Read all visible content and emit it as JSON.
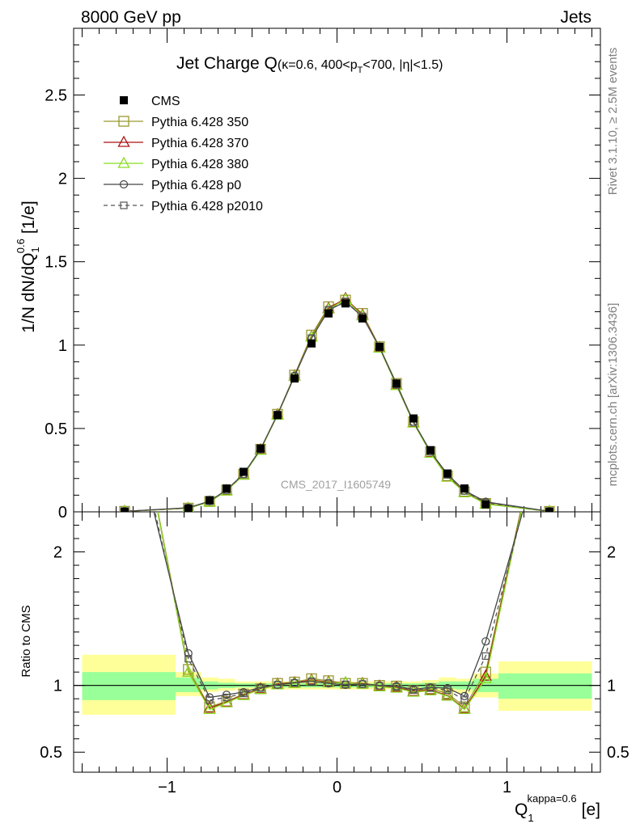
{
  "header": {
    "left": "8000 GeV pp",
    "right": "Jets"
  },
  "side_labels": {
    "rivet": "Rivet 3.1.10, ≥ 2.5M events",
    "mcplots": "mcplots.cern.ch [arXiv:1306.3436]"
  },
  "watermark": "CMS_2017_I1605749",
  "chart_data": [
    {
      "type": "scatter",
      "panel": "main",
      "title_main": "Jet Charge Q",
      "title_sub": "(κ=0.6, 400<p",
      "title_sub_sub": "T",
      "title_sub_tail": "<700, |η|<1.5)",
      "ylabel_main": "1/N dN/dQ",
      "ylabel_sup": "0.6",
      "ylabel_sub": "1",
      "ylabel_unit": "[1/e]",
      "xlim": [
        -1.55,
        1.55
      ],
      "ylim": [
        0,
        2.9
      ],
      "yticks": [
        0,
        0.5,
        1,
        1.5,
        2,
        2.5
      ],
      "ytick_labels": [
        "0",
        "0.5",
        "1",
        "1.5",
        "2",
        "2.5"
      ],
      "legend_position": "top-left",
      "x": [
        -1.25,
        -0.875,
        -0.75,
        -0.65,
        -0.55,
        -0.45,
        -0.35,
        -0.25,
        -0.15,
        -0.05,
        0.05,
        0.15,
        0.25,
        0.35,
        0.45,
        0.55,
        0.65,
        0.75,
        0.875,
        1.25
      ],
      "series": [
        {
          "name": "CMS",
          "key": "cms",
          "color": "#000000",
          "marker": "filled-square",
          "values": [
            0.002,
            0.02,
            0.07,
            0.14,
            0.24,
            0.38,
            0.58,
            0.8,
            1.01,
            1.19,
            1.25,
            1.16,
            0.99,
            0.77,
            0.56,
            0.37,
            0.23,
            0.14,
            0.045,
            0.002
          ]
        },
        {
          "name": "Pythia 6.428 350",
          "key": "p350",
          "color": "#999933",
          "marker": "open-square",
          "dash": "",
          "values": [
            0.003,
            0.022,
            0.062,
            0.13,
            0.225,
            0.375,
            0.585,
            0.82,
            1.06,
            1.23,
            1.27,
            1.19,
            0.99,
            0.77,
            0.54,
            0.36,
            0.215,
            0.12,
            0.05,
            0.0025
          ]
        },
        {
          "name": "Pythia 6.428 370",
          "key": "p370",
          "color": "#aa1111",
          "marker": "open-triangle",
          "dash": "",
          "values": [
            0.003,
            0.022,
            0.06,
            0.128,
            0.223,
            0.373,
            0.583,
            0.815,
            1.05,
            1.22,
            1.28,
            1.18,
            0.985,
            0.76,
            0.535,
            0.355,
            0.21,
            0.118,
            0.048,
            0.0025
          ]
        },
        {
          "name": "Pythia 6.428 380",
          "key": "p380",
          "color": "#88dd22",
          "marker": "open-triangle",
          "dash": "",
          "values": [
            0.003,
            0.022,
            0.059,
            0.126,
            0.221,
            0.37,
            0.58,
            0.812,
            1.048,
            1.215,
            1.275,
            1.175,
            0.982,
            0.758,
            0.533,
            0.352,
            0.208,
            0.116,
            0.047,
            0.0025
          ]
        },
        {
          "name": "Pythia 6.428 p0",
          "key": "p0",
          "color": "#444444",
          "marker": "open-circle",
          "dash": "",
          "values": [
            0.003,
            0.025,
            0.064,
            0.132,
            0.227,
            0.377,
            0.584,
            0.815,
            1.04,
            1.21,
            1.26,
            1.17,
            0.988,
            0.765,
            0.54,
            0.362,
            0.225,
            0.128,
            0.06,
            0.003
          ]
        },
        {
          "name": "Pythia 6.428 p2010",
          "key": "p2010",
          "color": "#555555",
          "marker": "open-square-small",
          "dash": "5,4",
          "values": [
            0.003,
            0.024,
            0.063,
            0.13,
            0.225,
            0.375,
            0.583,
            0.813,
            1.042,
            1.212,
            1.262,
            1.172,
            0.986,
            0.763,
            0.538,
            0.36,
            0.222,
            0.125,
            0.055,
            0.003
          ]
        }
      ]
    },
    {
      "type": "line",
      "panel": "ratio",
      "ylabel": "Ratio to CMS",
      "xlabel_main": "Q",
      "xlabel_sup": "kappa=0.6",
      "xlabel_sub": "1",
      "xlabel_unit": "[e]",
      "xlim": [
        -1.55,
        1.55
      ],
      "ylim": [
        0.35,
        2.3
      ],
      "xticks": [
        -1,
        0,
        1
      ],
      "xtick_labels": [
        "−1",
        "0",
        "1"
      ],
      "yticks": [
        0.5,
        1,
        2
      ],
      "ytick_labels": [
        "0.5",
        "1",
        "2"
      ],
      "band_bins": [
        {
          "x0": -1.5,
          "x1": -0.95,
          "inner": [
            0.89,
            1.1
          ],
          "outer": [
            0.78,
            1.23
          ]
        },
        {
          "x0": -0.95,
          "x1": -0.8,
          "inner": [
            0.95,
            1.06
          ],
          "outer": [
            0.92,
            1.1
          ]
        },
        {
          "x0": -0.8,
          "x1": -0.7,
          "inner": [
            0.97,
            1.03
          ],
          "outer": [
            0.95,
            1.06
          ]
        },
        {
          "x0": -0.7,
          "x1": -0.6,
          "inner": [
            0.98,
            1.02
          ],
          "outer": [
            0.96,
            1.05
          ]
        },
        {
          "x0": -0.6,
          "x1": 0.5,
          "inner": [
            0.985,
            1.015
          ],
          "outer": [
            0.97,
            1.03
          ]
        },
        {
          "x0": 0.5,
          "x1": 0.6,
          "inner": [
            0.98,
            1.02
          ],
          "outer": [
            0.96,
            1.04
          ]
        },
        {
          "x0": 0.6,
          "x1": 0.7,
          "inner": [
            0.975,
            1.03
          ],
          "outer": [
            0.95,
            1.06
          ]
        },
        {
          "x0": 0.7,
          "x1": 0.8,
          "inner": [
            0.97,
            1.03
          ],
          "outer": [
            0.94,
            1.05
          ]
        },
        {
          "x0": 0.8,
          "x1": 0.95,
          "inner": [
            0.95,
            1.05
          ],
          "outer": [
            0.91,
            1.09
          ]
        },
        {
          "x0": 0.95,
          "x1": 1.5,
          "inner": [
            0.9,
            1.09
          ],
          "outer": [
            0.81,
            1.18
          ]
        }
      ],
      "x": [
        -1.25,
        -0.875,
        -0.75,
        -0.65,
        -0.55,
        -0.45,
        -0.35,
        -0.25,
        -0.15,
        -0.05,
        0.05,
        0.15,
        0.25,
        0.35,
        0.45,
        0.55,
        0.65,
        0.75,
        0.875,
        1.25
      ],
      "series": [
        {
          "key": "p350",
          "values": [
            3.6,
            1.12,
            0.84,
            0.88,
            0.935,
            0.975,
            1.015,
            1.025,
            1.05,
            1.035,
            1.015,
            1.015,
            1.0,
            0.995,
            0.96,
            0.975,
            0.94,
            0.84,
            1.1,
            3.3
          ]
        },
        {
          "key": "p370",
          "values": [
            3.6,
            1.1,
            0.83,
            0.875,
            0.93,
            0.975,
            1.01,
            1.02,
            1.04,
            1.025,
            1.02,
            1.015,
            0.995,
            0.985,
            0.955,
            0.965,
            0.925,
            0.825,
            1.07,
            3.3
          ]
        },
        {
          "key": "p380",
          "values": [
            3.6,
            1.1,
            0.82,
            0.87,
            0.925,
            0.97,
            1.005,
            1.015,
            1.035,
            1.02,
            1.02,
            1.01,
            0.99,
            0.98,
            0.95,
            0.96,
            0.92,
            0.82,
            1.05,
            3.3
          ]
        },
        {
          "key": "p0",
          "values": [
            3.2,
            1.24,
            0.91,
            0.93,
            0.95,
            0.985,
            1.005,
            1.02,
            1.03,
            1.015,
            1.005,
            1.01,
            1.0,
            0.995,
            0.97,
            0.985,
            0.98,
            0.92,
            1.33,
            3.0
          ]
        },
        {
          "key": "p2010",
          "values": [
            3.3,
            1.2,
            0.89,
            0.91,
            0.94,
            0.98,
            1.005,
            1.018,
            1.03,
            1.017,
            1.008,
            1.01,
            0.997,
            0.99,
            0.965,
            0.98,
            0.965,
            0.89,
            1.22,
            3.1
          ]
        }
      ]
    }
  ]
}
